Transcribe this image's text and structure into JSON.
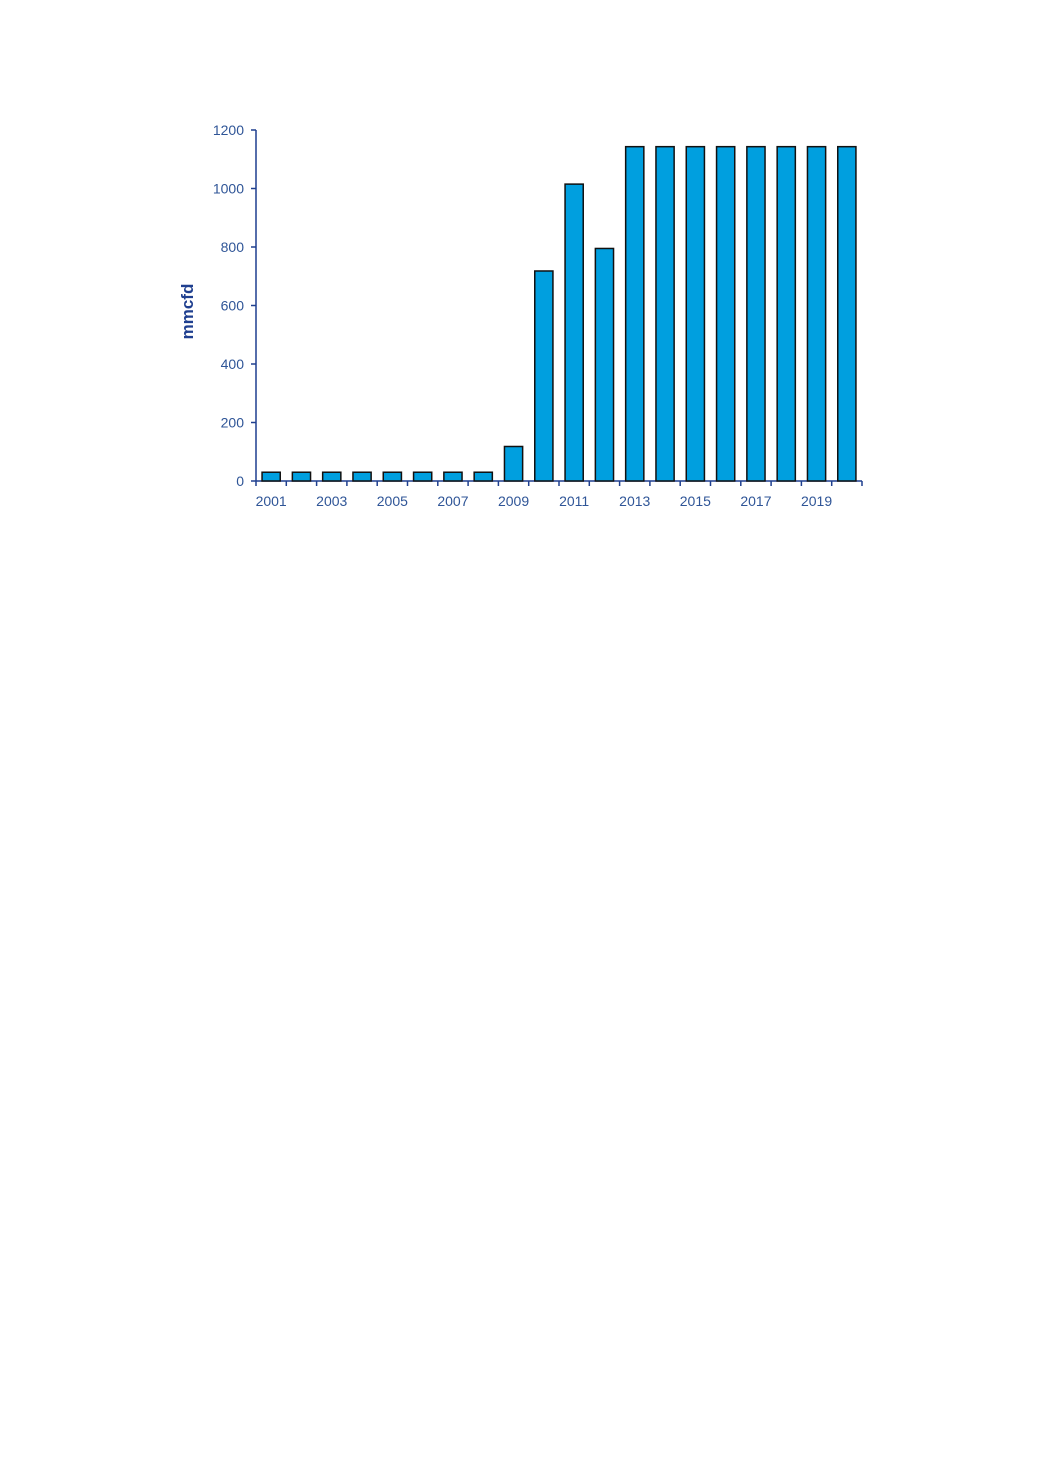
{
  "chart_data": {
    "type": "bar",
    "categories": [
      "2001",
      "2002",
      "2003",
      "2004",
      "2005",
      "2006",
      "2007",
      "2008",
      "2009",
      "2010",
      "2011",
      "2012",
      "2013",
      "2014",
      "2015",
      "2016",
      "2017",
      "2018",
      "2019",
      "2020"
    ],
    "values": [
      30,
      30,
      30,
      30,
      30,
      30,
      30,
      30,
      118,
      718,
      1015,
      795,
      1143,
      1143,
      1143,
      1143,
      1143,
      1143,
      1143,
      1143
    ],
    "x_tick_labels": [
      "2001",
      "2003",
      "2005",
      "2007",
      "2009",
      "2011",
      "2013",
      "2015",
      "2017",
      "2019"
    ],
    "y_ticks": [
      0,
      200,
      400,
      600,
      800,
      1000,
      1200
    ],
    "xlabel": "",
    "ylabel": "mmcfd",
    "ylim": [
      0,
      1200
    ],
    "grid": false,
    "legend": "none",
    "colors": {
      "bar_fill": "#009fdf",
      "bar_stroke": "#111111",
      "axis": "#1f3f8f",
      "tick_text": "#2f5597"
    }
  }
}
